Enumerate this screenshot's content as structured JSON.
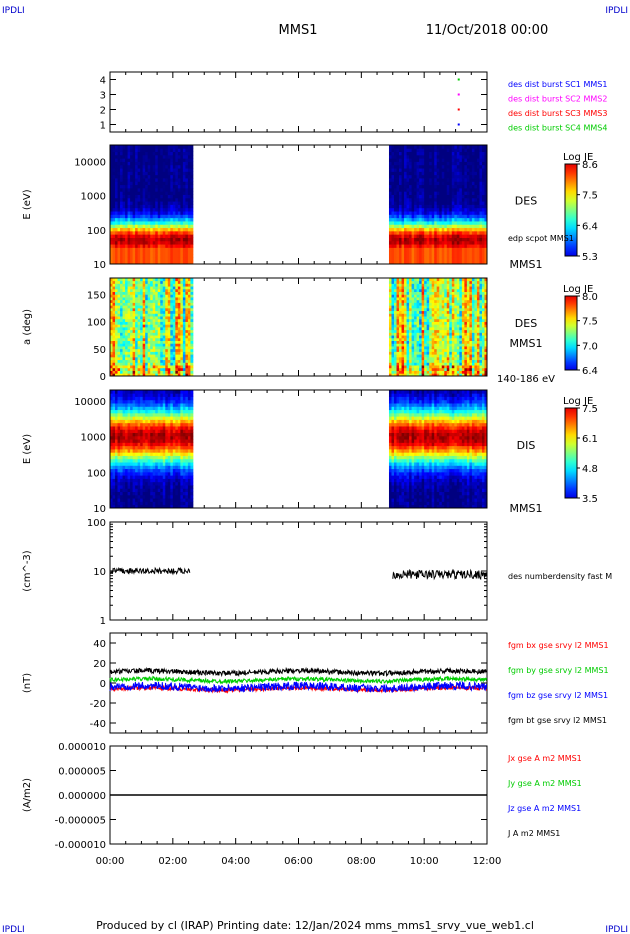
{
  "header": {
    "corner_left": "IPDLI",
    "corner_right": "IPDLI",
    "mission": "MMS1",
    "datetime": "11/Oct/2018 00:00",
    "footer_left": "IPDLI",
    "footer_right": "IPDLI",
    "footer_text": "Produced by cl (IRAP)   Printing date: 12/Jan/2024   mms_mms1_srvy_vue_web1.cl"
  },
  "colors": {
    "blue": "#0000ff",
    "magenta": "#ff00ff",
    "red": "#ff0000",
    "green": "#00cc00",
    "black": "#000000"
  },
  "chart_data": [
    {
      "id": "burst",
      "type": "scatter",
      "ylim": [
        0.5,
        4.5
      ],
      "yticks": [
        "1",
        "2",
        "3",
        "4"
      ],
      "xlim_hours": [
        0,
        12
      ],
      "legend": [
        {
          "label": "des dist burst SC1 MMS1",
          "color": "#0000ff"
        },
        {
          "label": "des dist burst SC2 MMS2",
          "color": "#ff00ff"
        },
        {
          "label": "des dist burst SC3 MMS3",
          "color": "#ff0000"
        },
        {
          "label": "des dist burst SC4 MMS4",
          "color": "#00cc00"
        }
      ],
      "points": [
        {
          "x": 11.1,
          "y": 4,
          "color": "#00cc00"
        },
        {
          "x": 11.1,
          "y": 3,
          "color": "#ff00ff"
        },
        {
          "x": 11.1,
          "y": 2,
          "color": "#ff0000"
        },
        {
          "x": 11.1,
          "y": 1,
          "color": "#0000ff"
        }
      ]
    },
    {
      "id": "des_energy",
      "type": "heatmap",
      "ylabel": "E (eV)",
      "ylog": true,
      "ylim": [
        10,
        30000
      ],
      "yticks": [
        "10",
        "100",
        "1000",
        "10000"
      ],
      "label": "DES",
      "sublabel": "MMS1",
      "overlay_label": "edp scpot MMS1",
      "colorbar": {
        "title": "Log JE",
        "ticks": [
          "8.6",
          "7.5",
          "6.4",
          "5.3"
        ],
        "min": 5.3,
        "max": 8.6
      },
      "data_intervals_hours": [
        [
          0,
          2.6
        ],
        [
          8.95,
          12
        ]
      ],
      "peak_energy_eV": 50
    },
    {
      "id": "des_pitch",
      "type": "heatmap",
      "ylabel": "a (deg)",
      "ylim": [
        0,
        180
      ],
      "yticks": [
        "0",
        "50",
        "100",
        "150"
      ],
      "label": "DES",
      "sublabel": "MMS1",
      "energy_range": "140-186 eV",
      "colorbar": {
        "title": "Log JE",
        "ticks": [
          "8.0",
          "7.5",
          "7.0",
          "6.4"
        ],
        "min": 6.4,
        "max": 8.0
      },
      "data_intervals_hours": [
        [
          0,
          2.6
        ],
        [
          8.95,
          12
        ]
      ]
    },
    {
      "id": "dis_energy",
      "type": "heatmap",
      "ylabel": "E (eV)",
      "ylog": true,
      "ylim": [
        10,
        20000
      ],
      "yticks": [
        "10",
        "100",
        "1000",
        "10000"
      ],
      "label": "DIS",
      "sublabel": "MMS1",
      "colorbar": {
        "title": "Log JE",
        "ticks": [
          "7.5",
          "6.1",
          "4.8",
          "3.5"
        ],
        "min": 3.5,
        "max": 7.5
      },
      "data_intervals_hours": [
        [
          0,
          2.6
        ],
        [
          8.95,
          12
        ]
      ],
      "peak_energy_eV": 1000
    },
    {
      "id": "density",
      "type": "line",
      "ylabel": "(cm^-3)",
      "ylog": true,
      "ylim": [
        1,
        100
      ],
      "yticks": [
        "1",
        "10",
        "100"
      ],
      "legend": [
        {
          "label": "des numberdensity fast M",
          "color": "#000000"
        }
      ],
      "segments": [
        {
          "x0": 0,
          "x1": 2.55,
          "base": 10,
          "var": 0.12
        },
        {
          "x0": 9.0,
          "x1": 12,
          "base": 8.5,
          "var": 0.18
        }
      ]
    },
    {
      "id": "bfield",
      "type": "line",
      "ylabel": "(nT)",
      "ylim": [
        -50,
        50
      ],
      "yticks": [
        "-40",
        "-20",
        "0",
        "20",
        "40"
      ],
      "legend": [
        {
          "label": "fgm bx gse srvy l2 MMS1",
          "color": "#ff0000"
        },
        {
          "label": "fgm by gse srvy l2 MMS1",
          "color": "#00cc00"
        },
        {
          "label": "fgm bz gse srvy l2 MMS1",
          "color": "#0000ff"
        },
        {
          "label": "fgm bt gse srvy l2 MMS1",
          "color": "#000000"
        }
      ],
      "series_levels": [
        {
          "color": "#00cc00",
          "mean": 3,
          "noise": 2
        },
        {
          "color": "#ff0000",
          "mean": -6,
          "noise": 2
        },
        {
          "color": "#0000ff",
          "mean": -4,
          "noise": 4
        },
        {
          "color": "#000000",
          "mean": 11,
          "noise": 2.5
        }
      ]
    },
    {
      "id": "current",
      "type": "line",
      "ylabel": "(A/m2)",
      "ylim": [
        -1e-05,
        1e-05
      ],
      "yticks": [
        "-0.000010",
        "-0.000005",
        "0.000000",
        "0.000005",
        "0.000010"
      ],
      "legend": [
        {
          "label": "Jx gse A m2 MMS1",
          "color": "#ff0000"
        },
        {
          "label": "Jy gse A m2 MMS1",
          "color": "#00cc00"
        },
        {
          "label": "Jz gse A m2 MMS1",
          "color": "#0000ff"
        },
        {
          "label": "J A m2 MMS1",
          "color": "#000000"
        }
      ],
      "value": 0
    }
  ],
  "xaxis": {
    "ticks": [
      "00:00",
      "02:00",
      "04:00",
      "06:00",
      "08:00",
      "10:00",
      "12:00"
    ]
  }
}
